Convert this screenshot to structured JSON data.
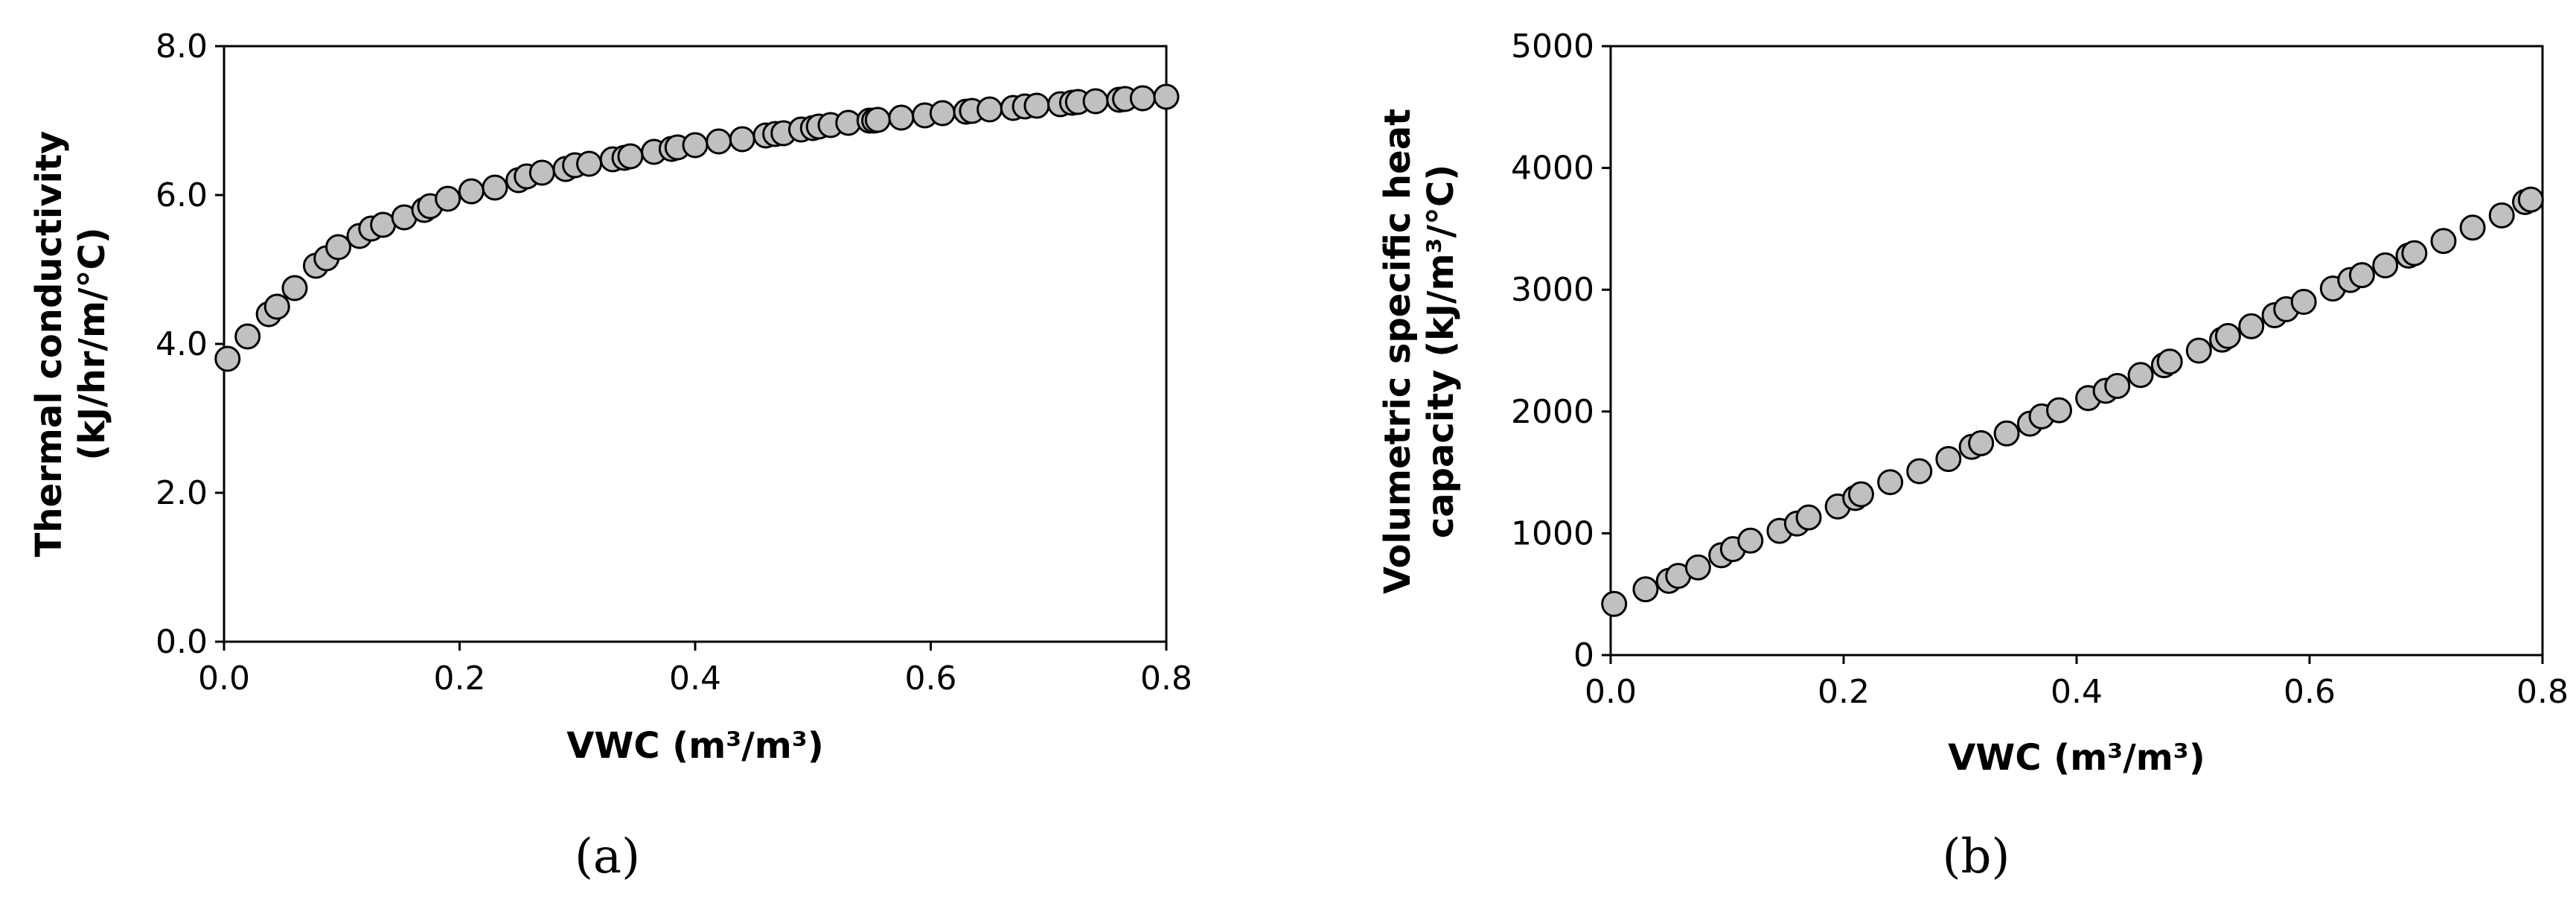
{
  "chart_data": [
    {
      "panel": "(a)",
      "type": "scatter",
      "xlabel": "VWC (m³/m³)",
      "ylabel_lines": [
        "Thermal conductivity",
        "(kJ/hr/m/°C)"
      ],
      "xlim": [
        0,
        0.8
      ],
      "ylim": [
        0,
        8
      ],
      "xticks": [
        "0.0",
        "0.2",
        "0.4",
        "0.6",
        "0.8"
      ],
      "yticks": [
        "0.0",
        "2.0",
        "4.0",
        "6.0",
        "8.0"
      ],
      "grid": false,
      "legend": "none",
      "marker_fill": "#c0c0c0",
      "marker_edge": "#000000",
      "series": [
        {
          "x": [
            0.003,
            0.02,
            0.038,
            0.045,
            0.06,
            0.078,
            0.087,
            0.097,
            0.115,
            0.125,
            0.135,
            0.153,
            0.17,
            0.175,
            0.19,
            0.21,
            0.23,
            0.25,
            0.257,
            0.27,
            0.29,
            0.298,
            0.31,
            0.33,
            0.34,
            0.345,
            0.365,
            0.38,
            0.385,
            0.4,
            0.42,
            0.44,
            0.46,
            0.468,
            0.475,
            0.49,
            0.5,
            0.505,
            0.515,
            0.53,
            0.548,
            0.552,
            0.555,
            0.575,
            0.595,
            0.61,
            0.63,
            0.635,
            0.65,
            0.67,
            0.68,
            0.69,
            0.71,
            0.72,
            0.725,
            0.74,
            0.76,
            0.765,
            0.78,
            0.8
          ],
          "y": [
            3.8,
            4.1,
            4.4,
            4.5,
            4.75,
            5.05,
            5.15,
            5.3,
            5.45,
            5.55,
            5.6,
            5.7,
            5.8,
            5.85,
            5.95,
            6.05,
            6.1,
            6.2,
            6.25,
            6.3,
            6.35,
            6.4,
            6.42,
            6.48,
            6.5,
            6.52,
            6.58,
            6.62,
            6.64,
            6.67,
            6.72,
            6.75,
            6.8,
            6.82,
            6.83,
            6.88,
            6.9,
            6.92,
            6.94,
            6.97,
            7.0,
            7.0,
            7.01,
            7.04,
            7.07,
            7.1,
            7.12,
            7.13,
            7.15,
            7.17,
            7.19,
            7.2,
            7.22,
            7.24,
            7.25,
            7.26,
            7.28,
            7.29,
            7.3,
            7.32
          ]
        }
      ]
    },
    {
      "panel": "(b)",
      "type": "scatter",
      "xlabel": "VWC (m³/m³)",
      "ylabel_lines": [
        "Volumetric specific heat",
        "capacity (kJ/m³/°C)"
      ],
      "xlim": [
        0,
        0.8
      ],
      "ylim": [
        0,
        5000
      ],
      "xticks": [
        "0.0",
        "0.2",
        "0.4",
        "0.6",
        "0.8"
      ],
      "yticks": [
        "0",
        "1000",
        "2000",
        "3000",
        "4000",
        "5000"
      ],
      "grid": false,
      "legend": "none",
      "marker_fill": "#c0c0c0",
      "marker_edge": "#000000",
      "series": [
        {
          "x": [
            0.003,
            0.03,
            0.05,
            0.058,
            0.075,
            0.095,
            0.105,
            0.12,
            0.145,
            0.16,
            0.17,
            0.195,
            0.21,
            0.215,
            0.24,
            0.265,
            0.29,
            0.31,
            0.318,
            0.34,
            0.36,
            0.37,
            0.385,
            0.41,
            0.425,
            0.435,
            0.455,
            0.475,
            0.48,
            0.505,
            0.525,
            0.53,
            0.55,
            0.57,
            0.58,
            0.595,
            0.62,
            0.635,
            0.645,
            0.665,
            0.685,
            0.69,
            0.715,
            0.74,
            0.765,
            0.785,
            0.79
          ],
          "y": [
            420,
            540,
            610,
            650,
            720,
            820,
            870,
            940,
            1020,
            1080,
            1130,
            1220,
            1290,
            1320,
            1420,
            1510,
            1610,
            1710,
            1740,
            1820,
            1900,
            1960,
            2010,
            2110,
            2170,
            2210,
            2300,
            2380,
            2410,
            2500,
            2590,
            2620,
            2700,
            2790,
            2840,
            2900,
            3010,
            3080,
            3120,
            3200,
            3280,
            3300,
            3400,
            3510,
            3610,
            3720,
            3740
          ]
        }
      ]
    }
  ]
}
